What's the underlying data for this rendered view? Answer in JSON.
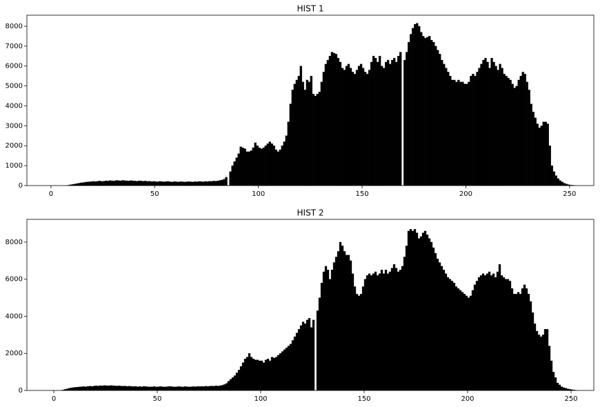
{
  "chart_data": [
    {
      "type": "histogram",
      "title": "HIST 1",
      "color": "#000000",
      "bins": [
        0,
        1,
        2,
        3,
        4,
        5,
        6,
        7,
        8,
        9,
        10,
        11,
        12,
        13,
        14,
        15,
        16,
        17,
        18,
        19,
        20,
        21,
        22,
        23,
        24,
        25,
        26,
        27,
        28,
        29,
        30,
        31,
        32,
        33,
        34,
        35,
        36,
        37,
        38,
        39,
        40,
        41,
        42,
        43,
        44,
        45,
        46,
        47,
        48,
        49,
        50,
        51,
        52,
        53,
        54,
        55,
        56,
        57,
        58,
        59,
        60,
        61,
        62,
        63,
        64,
        65,
        66,
        67,
        68,
        69,
        70,
        71,
        72,
        73,
        74,
        75,
        76,
        77,
        78,
        79,
        80,
        81,
        82,
        83,
        84,
        85,
        86,
        87,
        88,
        89,
        90,
        91,
        92,
        93,
        94,
        95,
        96,
        97,
        98,
        99,
        100,
        101,
        102,
        103,
        104,
        105,
        106,
        107,
        108,
        109,
        110,
        111,
        112,
        113,
        114,
        115,
        116,
        117,
        118,
        119,
        120,
        121,
        122,
        123,
        124,
        125,
        126,
        127,
        128,
        129,
        130,
        131,
        132,
        133,
        134,
        135,
        136,
        137,
        138,
        139,
        140,
        141,
        142,
        143,
        144,
        145,
        146,
        147,
        148,
        149,
        150,
        151,
        152,
        153,
        154,
        155,
        156,
        157,
        158,
        159,
        160,
        161,
        162,
        163,
        164,
        165,
        166,
        167,
        168,
        169,
        170,
        171,
        172,
        173,
        174,
        175,
        176,
        177,
        178,
        179,
        180,
        181,
        182,
        183,
        184,
        185,
        186,
        187,
        188,
        189,
        190,
        191,
        192,
        193,
        194,
        195,
        196,
        197,
        198,
        199,
        200,
        201,
        202,
        203,
        204,
        205,
        206,
        207,
        208,
        209,
        210,
        211,
        212,
        213,
        214,
        215,
        216,
        217,
        218,
        219,
        220,
        221,
        222,
        223,
        224,
        225,
        226,
        227,
        228,
        229,
        230,
        231,
        232,
        233,
        234,
        235,
        236,
        237,
        238,
        239,
        240,
        241,
        242,
        243,
        244,
        245,
        246,
        247,
        248,
        249,
        250,
        251,
        252,
        253,
        254,
        255,
        256
      ],
      "values": [
        0,
        0,
        0,
        0,
        0,
        0,
        0,
        0,
        20,
        40,
        60,
        80,
        100,
        120,
        140,
        150,
        170,
        180,
        190,
        200,
        210,
        200,
        220,
        230,
        210,
        220,
        240,
        230,
        250,
        240,
        230,
        260,
        250,
        240,
        260,
        250,
        240,
        230,
        250,
        240,
        230,
        220,
        240,
        230,
        220,
        230,
        210,
        220,
        200,
        210,
        200,
        190,
        210,
        200,
        190,
        200,
        210,
        190,
        180,
        200,
        190,
        180,
        200,
        190,
        180,
        190,
        200,
        190,
        180,
        200,
        190,
        210,
        200,
        190,
        210,
        200,
        220,
        210,
        230,
        220,
        240,
        260,
        280,
        320,
        420,
        0,
        700,
        1000,
        1200,
        1400,
        1600,
        1950,
        1900,
        1850,
        1700,
        1700,
        1750,
        1900,
        2150,
        2000,
        1900,
        1850,
        1900,
        2000,
        2100,
        2200,
        2100,
        2000,
        1800,
        1700,
        1800,
        2000,
        2200,
        2500,
        3200,
        4100,
        4800,
        5100,
        5300,
        5500,
        6000,
        5200,
        4800,
        5300,
        5200,
        5500,
        4600,
        4500,
        4600,
        4700,
        5200,
        5700,
        6100,
        6300,
        6500,
        6700,
        6650,
        6600,
        6400,
        6200,
        5900,
        5800,
        6000,
        6100,
        5900,
        5700,
        5600,
        5800,
        6000,
        6100,
        5900,
        5700,
        5600,
        5800,
        6200,
        6500,
        6400,
        6200,
        6500,
        6000,
        5900,
        6200,
        6300,
        6100,
        6300,
        6400,
        6200,
        6500,
        6700,
        0,
        6300,
        6700,
        7200,
        7600,
        7900,
        8100,
        8150,
        8000,
        7700,
        7500,
        7400,
        7450,
        7500,
        7300,
        7200,
        7000,
        6800,
        6600,
        6300,
        6100,
        5900,
        5700,
        5500,
        5300,
        5300,
        5200,
        5300,
        5200,
        5200,
        5100,
        5100,
        5200,
        5500,
        5600,
        5500,
        5700,
        5900,
        6100,
        6300,
        6400,
        6200,
        5900,
        6400,
        6200,
        6000,
        5800,
        6100,
        5900,
        5600,
        5500,
        5400,
        5300,
        5100,
        4900,
        5000,
        5300,
        5500,
        5700,
        5600,
        5200,
        4800,
        4100,
        3700,
        3400,
        3100,
        2900,
        3000,
        3200,
        3200,
        3100,
        2000,
        1000,
        700,
        500,
        350,
        250,
        180,
        120,
        80,
        50,
        30,
        20,
        10,
        0,
        0,
        0
      ],
      "xlim": [
        -11.6,
        261.7
      ],
      "ylim": [
        0,
        8554
      ],
      "xticks": [
        0,
        50,
        100,
        150,
        200,
        250
      ],
      "yticks": [
        0,
        1000,
        2000,
        3000,
        4000,
        5000,
        6000,
        7000,
        8000
      ]
    },
    {
      "type": "histogram",
      "title": "HIST 2",
      "color": "#000000",
      "bins": [
        0,
        1,
        2,
        3,
        4,
        5,
        6,
        7,
        8,
        9,
        10,
        11,
        12,
        13,
        14,
        15,
        16,
        17,
        18,
        19,
        20,
        21,
        22,
        23,
        24,
        25,
        26,
        27,
        28,
        29,
        30,
        31,
        32,
        33,
        34,
        35,
        36,
        37,
        38,
        39,
        40,
        41,
        42,
        43,
        44,
        45,
        46,
        47,
        48,
        49,
        50,
        51,
        52,
        53,
        54,
        55,
        56,
        57,
        58,
        59,
        60,
        61,
        62,
        63,
        64,
        65,
        66,
        67,
        68,
        69,
        70,
        71,
        72,
        73,
        74,
        75,
        76,
        77,
        78,
        79,
        80,
        81,
        82,
        83,
        84,
        85,
        86,
        87,
        88,
        89,
        90,
        91,
        92,
        93,
        94,
        95,
        96,
        97,
        98,
        99,
        100,
        101,
        102,
        103,
        104,
        105,
        106,
        107,
        108,
        109,
        110,
        111,
        112,
        113,
        114,
        115,
        116,
        117,
        118,
        119,
        120,
        121,
        122,
        123,
        124,
        125,
        126,
        127,
        128,
        129,
        130,
        131,
        132,
        133,
        134,
        135,
        136,
        137,
        138,
        139,
        140,
        141,
        142,
        143,
        144,
        145,
        146,
        147,
        148,
        149,
        150,
        151,
        152,
        153,
        154,
        155,
        156,
        157,
        158,
        159,
        160,
        161,
        162,
        163,
        164,
        165,
        166,
        167,
        168,
        169,
        170,
        171,
        172,
        173,
        174,
        175,
        176,
        177,
        178,
        179,
        180,
        181,
        182,
        183,
        184,
        185,
        186,
        187,
        188,
        189,
        190,
        191,
        192,
        193,
        194,
        195,
        196,
        197,
        198,
        199,
        200,
        201,
        202,
        203,
        204,
        205,
        206,
        207,
        208,
        209,
        210,
        211,
        212,
        213,
        214,
        215,
        216,
        217,
        218,
        219,
        220,
        221,
        222,
        223,
        224,
        225,
        226,
        227,
        228,
        229,
        230,
        231,
        232,
        233,
        234,
        235,
        236,
        237,
        238,
        239,
        240,
        241,
        242,
        243,
        244,
        245,
        246,
        247,
        248,
        249,
        250,
        251,
        252,
        253,
        254,
        255,
        256
      ],
      "values": [
        0,
        0,
        0,
        0,
        30,
        60,
        90,
        120,
        140,
        160,
        170,
        180,
        190,
        200,
        210,
        200,
        220,
        230,
        220,
        240,
        250,
        240,
        260,
        250,
        270,
        260,
        250,
        270,
        260,
        250,
        240,
        250,
        240,
        230,
        240,
        220,
        230,
        220,
        210,
        220,
        200,
        210,
        200,
        220,
        210,
        200,
        190,
        200,
        210,
        190,
        200,
        210,
        200,
        190,
        200,
        210,
        220,
        200,
        190,
        200,
        210,
        200,
        190,
        210,
        200,
        190,
        200,
        210,
        200,
        220,
        210,
        220,
        210,
        230,
        220,
        230,
        240,
        230,
        250,
        240,
        260,
        280,
        320,
        380,
        500,
        600,
        700,
        800,
        950,
        1100,
        1300,
        1500,
        1700,
        1800,
        2000,
        1800,
        1700,
        1650,
        1650,
        1600,
        1600,
        1500,
        1650,
        1700,
        1600,
        1800,
        1750,
        1800,
        1900,
        2000,
        2100,
        2200,
        2300,
        2400,
        2500,
        2700,
        2900,
        3100,
        3300,
        3500,
        3700,
        3600,
        3800,
        3900,
        3400,
        3800,
        0,
        4300,
        5000,
        5800,
        6400,
        6700,
        6500,
        6000,
        6500,
        6900,
        7200,
        7500,
        8000,
        7800,
        7500,
        7300,
        7300,
        7000,
        6300,
        5600,
        5200,
        5100,
        5200,
        5600,
        6000,
        6200,
        6300,
        6200,
        6300,
        6400,
        6200,
        6300,
        6500,
        6300,
        6500,
        6300,
        6400,
        6600,
        6800,
        6600,
        6400,
        6500,
        6700,
        7200,
        7800,
        8600,
        8700,
        8600,
        8700,
        8500,
        8200,
        8300,
        8500,
        8600,
        8400,
        8200,
        8000,
        7700,
        7400,
        7100,
        6900,
        6700,
        6500,
        6300,
        6100,
        6000,
        5900,
        5800,
        5600,
        5500,
        5400,
        5300,
        5200,
        5100,
        5000,
        5100,
        5400,
        5700,
        5900,
        6100,
        6200,
        6300,
        6200,
        6300,
        6400,
        6200,
        6300,
        6100,
        6400,
        6800,
        6200,
        6100,
        6000,
        6000,
        5900,
        5500,
        5200,
        5200,
        5300,
        5200,
        5500,
        5700,
        5500,
        5200,
        4800,
        4200,
        3600,
        3200,
        3000,
        2900,
        3000,
        3300,
        3300,
        2400,
        1600,
        1000,
        700,
        400,
        300,
        200,
        150,
        120,
        80,
        60,
        40,
        30,
        10,
        0,
        0,
        0
      ],
      "xlim": [
        -13,
        261
      ],
      "ylim": [
        0,
        9227
      ],
      "xticks": [
        0,
        50,
        100,
        150,
        200,
        250
      ],
      "yticks": [
        0,
        2000,
        4000,
        6000,
        8000
      ]
    }
  ]
}
